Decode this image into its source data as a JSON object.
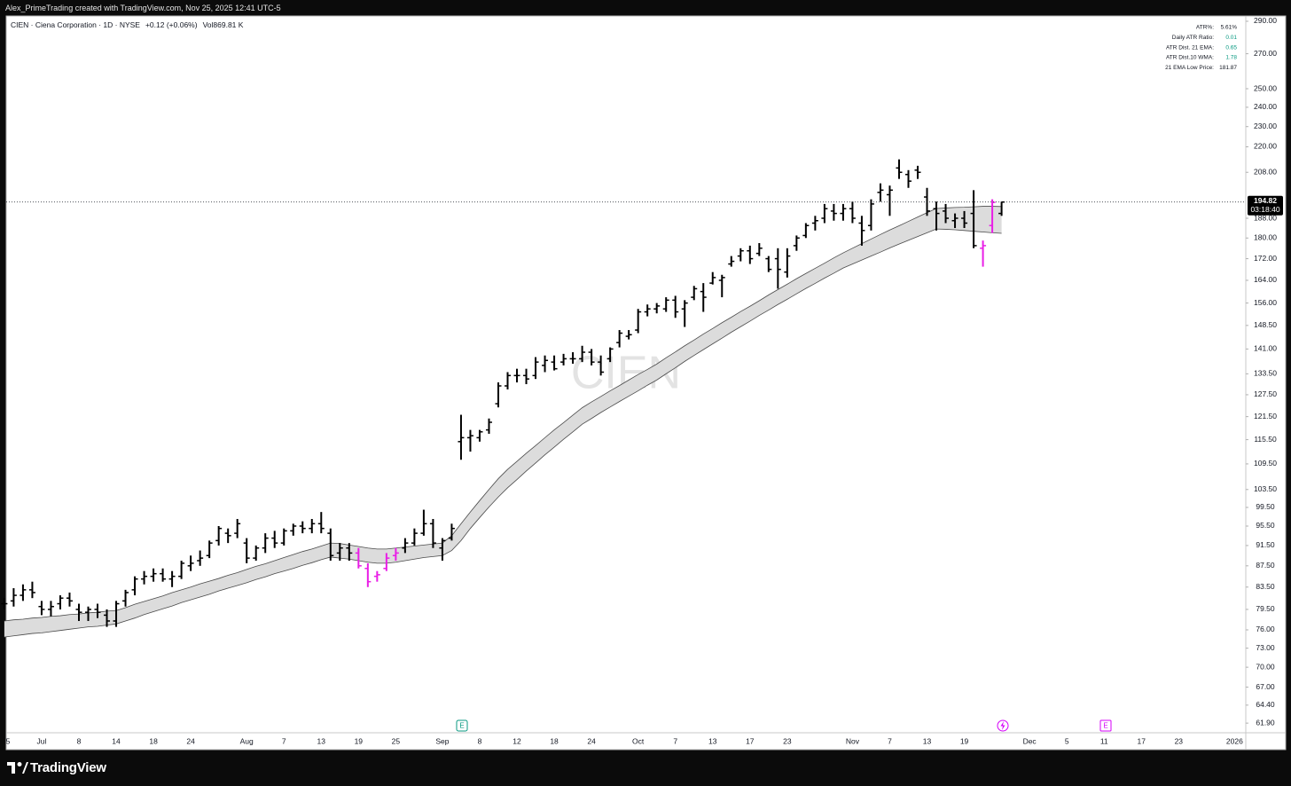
{
  "header": {
    "text": "Alex_PrimeTrading created with TradingView.com, Nov 25, 2025 12:41 UTC-5"
  },
  "footer": {
    "brand": "TradingView"
  },
  "chart_data": {
    "type": "ohlc",
    "legend": {
      "symbol": "CIEN · Ciena Corporation · 1D · NYSE",
      "change": "+0.12 (+0.06%)",
      "volume": "Vol869.81 K"
    },
    "watermark": "CIEN",
    "countdown": "03:18:40",
    "table": {
      "rows": [
        [
          "ATR%:",
          "5.61%"
        ],
        [
          "Daily ATR Ratio:",
          "0.01"
        ],
        [
          "ATR Dist. 21 EMA:",
          "0.65"
        ],
        [
          "ATR Dist.10 WMA:",
          "1.78"
        ],
        [
          "21 EMA Low Price:",
          "181.87"
        ]
      ],
      "value_colors": [
        "#131722",
        "#089981",
        "#089981",
        "#089981",
        "#131722"
      ]
    },
    "events": [
      {
        "label": "E",
        "color": "#089981"
      },
      {
        "label": "E",
        "color": "#d500f9"
      }
    ],
    "categories": [
      "5",
      null,
      null,
      null,
      "Jul",
      null,
      null,
      null,
      "8",
      null,
      null,
      null,
      "14",
      null,
      null,
      null,
      "18",
      null,
      null,
      null,
      "24",
      null,
      null,
      null,
      null,
      null,
      "Aug",
      null,
      null,
      null,
      "7",
      null,
      null,
      null,
      "13",
      null,
      null,
      null,
      "19",
      null,
      null,
      null,
      "25",
      null,
      null,
      null,
      null,
      "Sep",
      null,
      null,
      null,
      "8",
      null,
      null,
      null,
      "12",
      null,
      null,
      null,
      "18",
      null,
      null,
      null,
      "24",
      null,
      null,
      null,
      null,
      "Oct",
      null,
      null,
      null,
      "7",
      null,
      null,
      null,
      "13",
      null,
      null,
      null,
      "17",
      null,
      null,
      null,
      "23",
      null,
      null,
      null,
      null,
      null,
      null,
      "Nov",
      null,
      null,
      null,
      "7",
      null,
      null,
      null,
      "13",
      null,
      null,
      null,
      "19",
      null,
      null,
      null,
      null,
      null,
      null,
      "Dec",
      null,
      null,
      null,
      "5",
      null,
      null,
      null,
      "11",
      null,
      null,
      null,
      "17",
      null,
      null,
      null,
      "23",
      null,
      null,
      null,
      null,
      null,
      "2026"
    ],
    "open": [
      80.5,
      81,
      82,
      83,
      80,
      79.5,
      80.5,
      81.5,
      79.5,
      79,
      79.5,
      78.5,
      77.5,
      81,
      83,
      85,
      85.5,
      86,
      85,
      85.5,
      87.5,
      88.5,
      89.5,
      92.5,
      94,
      94,
      92,
      89,
      91,
      93,
      92,
      94.5,
      95.5,
      95,
      96,
      94,
      90,
      91,
      90,
      87,
      85.5,
      87,
      89.5,
      91,
      92,
      94,
      96,
      91,
      93,
      115,
      116,
      116,
      118,
      125,
      130,
      133,
      133,
      133,
      136,
      137,
      137,
      138,
      138,
      140,
      137,
      138,
      143,
      145,
      147,
      153,
      154,
      154,
      157,
      154,
      158,
      160,
      163,
      164,
      170,
      173,
      175,
      174,
      172,
      172,
      167,
      177,
      181,
      186,
      188,
      191,
      190,
      192,
      186,
      185,
      199,
      198,
      210,
      207,
      209,
      197,
      192,
      191,
      187,
      188,
      190,
      176,
      185,
      190,
      null,
      null,
      null,
      null,
      null,
      null,
      null,
      null,
      null,
      null,
      null,
      null,
      null,
      null,
      null,
      null,
      null,
      null,
      null,
      null,
      null,
      null,
      null,
      null,
      null
    ],
    "high": [
      81.5,
      83.3,
      84,
      84.5,
      81,
      81,
      82,
      82.5,
      80.5,
      80,
      80.5,
      79.5,
      81,
      83,
      85.5,
      86.5,
      87,
      87,
      86.5,
      88.5,
      89.5,
      90.5,
      92.5,
      95.5,
      95,
      97,
      93,
      91.5,
      94,
      94.5,
      95,
      96,
      96.5,
      97,
      98.5,
      95,
      92,
      92,
      91,
      88,
      86.5,
      90,
      91,
      93,
      95,
      99,
      97,
      93,
      96,
      122,
      118,
      118,
      121,
      131,
      134,
      135,
      135,
      138.5,
      139,
      139,
      139.5,
      140,
      142,
      141,
      139,
      141.5,
      147,
      147,
      154,
      155.5,
      156,
      158,
      158.5,
      157,
      162,
      163,
      167,
      166,
      173,
      176,
      177,
      178,
      173,
      176,
      176,
      181,
      186,
      189,
      194,
      194,
      194,
      195,
      189,
      196,
      203,
      202,
      214,
      209,
      211,
      201,
      195,
      194,
      190,
      191,
      200,
      179,
      196,
      195,
      null,
      null,
      null,
      null,
      null,
      null,
      null,
      null,
      null,
      null,
      null,
      null,
      null,
      null,
      null,
      null,
      null,
      null,
      null,
      null,
      null,
      null,
      null,
      null,
      null
    ],
    "low": [
      79.5,
      80,
      81,
      81.5,
      78.5,
      78.3,
      79.5,
      80,
      77.5,
      77.5,
      78,
      76.5,
      76.5,
      80,
      82,
      84,
      84.5,
      84.5,
      83.5,
      85,
      86.5,
      87.5,
      89,
      91.5,
      92,
      93,
      88,
      88.5,
      90,
      91,
      91.5,
      93.5,
      94,
      94,
      94,
      88.5,
      88.5,
      88.5,
      87,
      83.5,
      84.5,
      86.5,
      88.5,
      90,
      91.5,
      93.5,
      91,
      88.5,
      92.5,
      110.5,
      112.5,
      115,
      117,
      124,
      129,
      131,
      130.5,
      132,
      134,
      134.5,
      136,
      136.5,
      137,
      136,
      133,
      137,
      141.5,
      144,
      146,
      151.5,
      152.5,
      153,
      151,
      148,
      157,
      153,
      162.5,
      158,
      169,
      171,
      170,
      173,
      167,
      161,
      165,
      175,
      180,
      183,
      186,
      187,
      187,
      186,
      177,
      183,
      195,
      189,
      205,
      201,
      205,
      189,
      183,
      186,
      184,
      184,
      176,
      169,
      182,
      189,
      null,
      null,
      null,
      null,
      null,
      null,
      null,
      null,
      null,
      null,
      null,
      null,
      null,
      null,
      null,
      null,
      null,
      null,
      null,
      null,
      null,
      null,
      null,
      null,
      null
    ],
    "close": [
      80.5,
      82,
      83,
      82.5,
      79.5,
      80,
      81.5,
      81,
      79,
      79.5,
      79,
      77.5,
      80.5,
      82.5,
      85,
      85.5,
      86,
      85,
      85.5,
      88,
      88,
      89,
      92,
      95,
      93.5,
      96,
      89,
      91,
      93,
      92,
      94.5,
      95.5,
      95,
      96,
      95,
      89.5,
      91,
      90,
      87.5,
      84.5,
      85.8,
      89,
      90,
      92,
      94,
      96,
      92,
      92.5,
      95,
      116,
      116.5,
      117.5,
      120,
      130,
      133,
      133,
      132,
      137,
      137.5,
      135,
      138,
      138,
      140,
      137,
      134,
      141,
      146,
      145.5,
      153,
      154,
      155,
      157,
      153,
      156,
      161,
      158,
      165,
      165,
      171,
      175,
      172,
      176,
      168,
      168,
      173,
      180,
      185,
      187,
      192,
      190,
      192,
      188,
      183,
      194,
      200,
      200,
      208,
      204,
      208,
      191,
      190,
      188,
      188,
      186,
      177,
      177,
      194.7,
      194.82,
      null,
      null,
      null,
      null,
      null,
      null,
      null,
      null,
      null,
      null,
      null,
      null,
      null,
      null,
      null,
      null,
      null,
      null,
      null,
      null,
      null,
      null,
      null,
      null,
      null
    ],
    "colors": [
      "#000000",
      "#000000",
      "#000000",
      "#000000",
      "#000000",
      "#000000",
      "#000000",
      "#000000",
      "#000000",
      "#000000",
      "#000000",
      "#000000",
      "#000000",
      "#000000",
      "#000000",
      "#000000",
      "#000000",
      "#000000",
      "#000000",
      "#000000",
      "#000000",
      "#000000",
      "#000000",
      "#000000",
      "#000000",
      "#000000",
      "#000000",
      "#000000",
      "#000000",
      "#000000",
      "#000000",
      "#000000",
      "#000000",
      "#000000",
      "#000000",
      "#000000",
      "#000000",
      "#000000",
      "#e91ee6",
      "#e91ee6",
      "#e91ee6",
      "#e91ee6",
      "#e91ee6",
      "#000000",
      "#000000",
      "#000000",
      "#000000",
      "#000000",
      "#000000",
      "#000000",
      "#000000",
      "#000000",
      "#000000",
      "#000000",
      "#000000",
      "#000000",
      "#000000",
      "#000000",
      "#000000",
      "#000000",
      "#000000",
      "#000000",
      "#000000",
      "#000000",
      "#000000",
      "#000000",
      "#000000",
      "#000000",
      "#000000",
      "#000000",
      "#000000",
      "#000000",
      "#000000",
      "#000000",
      "#000000",
      "#000000",
      "#000000",
      "#000000",
      "#000000",
      "#000000",
      "#000000",
      "#000000",
      "#000000",
      "#000000",
      "#000000",
      "#000000",
      "#000000",
      "#000000",
      "#000000",
      "#000000",
      "#000000",
      "#000000",
      "#000000",
      "#000000",
      "#000000",
      "#000000",
      "#000000",
      "#000000",
      "#000000",
      "#000000",
      "#000000",
      "#000000",
      "#000000",
      "#000000",
      "#000000",
      "#e91ee6",
      "#e91ee6",
      "#000000",
      "#000000",
      null,
      null,
      null,
      null,
      null,
      null,
      null,
      null,
      null,
      null,
      null,
      null,
      null,
      null,
      null,
      null,
      null,
      null,
      null,
      null,
      null,
      null,
      null,
      null,
      null
    ],
    "band": {
      "fill": "#dcdcdc",
      "line_color": "#4a4a4a",
      "upper": [
        77.5,
        77.7,
        77.8,
        78.0,
        78.1,
        78.3,
        78.4,
        78.6,
        78.7,
        78.9,
        79.0,
        79.2,
        79.3,
        79.8,
        80.4,
        80.9,
        81.4,
        81.9,
        82.5,
        83.0,
        83.5,
        84.1,
        84.6,
        85.1,
        85.7,
        86.2,
        86.8,
        87.4,
        87.9,
        88.5,
        89.1,
        89.7,
        90.3,
        90.8,
        91.4,
        92.0,
        91.9,
        91.6,
        91.3,
        91.0,
        90.8,
        90.8,
        91.0,
        91.2,
        91.4,
        91.6,
        91.8,
        92.0,
        93.5,
        96,
        98.5,
        101,
        103.5,
        106,
        108.2,
        110.1,
        112.1,
        114.0,
        116.0,
        118.0,
        119.9,
        121.9,
        123.9,
        125.5,
        127.0,
        128.6,
        130.1,
        131.7,
        133.3,
        134.8,
        136.4,
        138.3,
        140.1,
        142.0,
        143.8,
        145.7,
        147.5,
        149.4,
        151.2,
        153.1,
        154.9,
        156.8,
        158.8,
        160.7,
        162.6,
        164.6,
        166.5,
        168.4,
        170.3,
        172.3,
        174.2,
        176.0,
        177.8,
        179.6,
        181.4,
        183.2,
        184.9,
        186.7,
        188.5,
        190.3,
        192.1,
        192.3,
        192.5,
        192.6,
        192.8,
        193.0,
        193.0,
        192.9,
        null,
        null,
        null,
        null,
        null,
        null,
        null,
        null,
        null,
        null,
        null,
        null,
        null,
        null,
        null,
        null,
        null,
        null,
        null,
        null,
        null,
        null,
        null,
        null,
        null
      ],
      "lower": [
        74.8,
        75.0,
        75.2,
        75.4,
        75.5,
        75.7,
        75.9,
        76.1,
        76.3,
        76.5,
        76.6,
        76.8,
        77.0,
        77.5,
        78.0,
        78.6,
        79.1,
        79.6,
        80.1,
        80.7,
        81.2,
        81.7,
        82.2,
        82.8,
        83.3,
        83.8,
        84.3,
        84.9,
        85.4,
        86.0,
        86.5,
        87.0,
        87.6,
        88.1,
        88.7,
        89.2,
        89.0,
        88.8,
        88.5,
        88.2,
        88.0,
        88.0,
        88.2,
        88.5,
        88.8,
        89.1,
        89.3,
        89.5,
        90.5,
        92.5,
        95,
        97.3,
        99.6,
        101.8,
        103.9,
        105.8,
        107.8,
        109.7,
        111.7,
        113.6,
        115.6,
        117.5,
        119.5,
        121.0,
        122.6,
        124.1,
        125.6,
        127.1,
        128.6,
        130.2,
        131.7,
        133.5,
        135.3,
        137.2,
        139.0,
        140.8,
        142.6,
        144.4,
        146.3,
        148.1,
        149.9,
        151.8,
        153.6,
        155.5,
        157.3,
        159.2,
        161.1,
        162.9,
        164.8,
        166.6,
        168.5,
        170.0,
        171.5,
        173.0,
        174.5,
        176.1,
        177.6,
        179.1,
        180.6,
        182.1,
        183.6,
        183.5,
        183.3,
        183.0,
        182.7,
        182.4,
        182.1,
        181.87,
        null,
        null,
        null,
        null,
        null,
        null,
        null,
        null,
        null,
        null,
        null,
        null,
        null,
        null,
        null,
        null,
        null,
        null,
        null,
        null,
        null,
        null,
        null,
        null,
        null
      ]
    },
    "ylim": [
      60.6,
      293.4
    ],
    "log": true,
    "yticks": [
      {
        "value": 290,
        "label": "290.00"
      },
      {
        "value": 270,
        "label": "270.00"
      },
      {
        "value": 250,
        "label": "250.00"
      },
      {
        "value": 240,
        "label": "240.00"
      },
      {
        "value": 230,
        "label": "230.00"
      },
      {
        "value": 220,
        "label": "220.00"
      },
      {
        "value": 208,
        "label": "208.00"
      },
      {
        "value": 188,
        "label": "188.00"
      },
      {
        "value": 180,
        "label": "180.00"
      },
      {
        "value": 172,
        "label": "172.00"
      },
      {
        "value": 164,
        "label": "164.00"
      },
      {
        "value": 156,
        "label": "156.00"
      },
      {
        "value": 148.5,
        "label": "148.50"
      },
      {
        "value": 141,
        "label": "141.00"
      },
      {
        "value": 133.5,
        "label": "133.50"
      },
      {
        "value": 127.5,
        "label": "127.50"
      },
      {
        "value": 121.5,
        "label": "121.50"
      },
      {
        "value": 115.5,
        "label": "115.50"
      },
      {
        "value": 109.5,
        "label": "109.50"
      },
      {
        "value": 103.5,
        "label": "103.50"
      },
      {
        "value": 99.5,
        "label": "99.50"
      },
      {
        "value": 95.5,
        "label": "95.50"
      },
      {
        "value": 91.5,
        "label": "91.50"
      },
      {
        "value": 87.5,
        "label": "87.50"
      },
      {
        "value": 83.5,
        "label": "83.50"
      },
      {
        "value": 79.5,
        "label": "79.50"
      },
      {
        "value": 76,
        "label": "76.00"
      },
      {
        "value": 73,
        "label": "73.00"
      },
      {
        "value": 70,
        "label": "70.00"
      },
      {
        "value": 67,
        "label": "67.00"
      },
      {
        "value": 64.4,
        "label": "64.40"
      },
      {
        "value": 61.9,
        "label": "61.90"
      }
    ]
  }
}
